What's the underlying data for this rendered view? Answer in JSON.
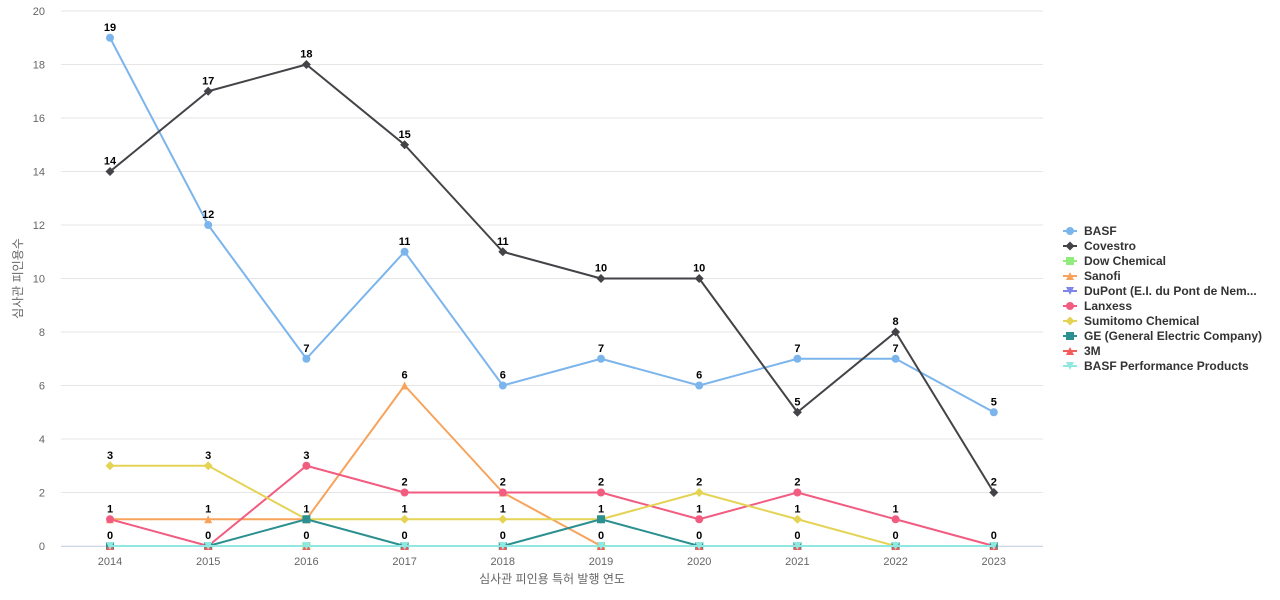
{
  "chart_data": {
    "type": "line",
    "title": "",
    "xlabel": "심사관 피인용 특허 발행 연도",
    "ylabel": "심사관 피인용수",
    "x": [
      "2014",
      "2015",
      "2016",
      "2017",
      "2018",
      "2019",
      "2020",
      "2021",
      "2022",
      "2023"
    ],
    "ylim": [
      0,
      20
    ],
    "yticks": [
      0,
      2,
      4,
      6,
      8,
      10,
      12,
      14,
      16,
      18,
      20
    ],
    "grid": true,
    "legend_position": "right",
    "series": [
      {
        "name": "BASF",
        "color": "#7cb5ec",
        "marker": "circle",
        "values": [
          19,
          12,
          7,
          11,
          6,
          7,
          6,
          7,
          7,
          5
        ]
      },
      {
        "name": "Covestro",
        "color": "#434348",
        "marker": "diamond",
        "values": [
          14,
          17,
          18,
          15,
          11,
          10,
          10,
          5,
          8,
          2
        ]
      },
      {
        "name": "Dow Chemical",
        "color": "#90ed7d",
        "marker": "square",
        "values": [
          0,
          0,
          0,
          0,
          0,
          0,
          0,
          0,
          0,
          0
        ]
      },
      {
        "name": "Sanofi",
        "color": "#f7a35c",
        "marker": "triangle",
        "values": [
          1,
          1,
          1,
          6,
          2,
          0,
          0,
          0,
          0,
          0
        ]
      },
      {
        "name": "DuPont (E.I. du Pont de Nem...",
        "color": "#8085e9",
        "marker": "triangle-down",
        "values": [
          0,
          0,
          0,
          0,
          0,
          0,
          0,
          0,
          0,
          0
        ]
      },
      {
        "name": "Lanxess",
        "color": "#f15c80",
        "marker": "circle",
        "values": [
          1,
          0,
          3,
          2,
          2,
          2,
          1,
          2,
          1,
          0
        ]
      },
      {
        "name": "Sumitomo Chemical",
        "color": "#e4d354",
        "marker": "diamond",
        "values": [
          3,
          3,
          1,
          1,
          1,
          1,
          2,
          1,
          0,
          0
        ]
      },
      {
        "name": "GE (General Electric Company)",
        "color": "#2b908f",
        "marker": "square",
        "values": [
          0,
          0,
          1,
          0,
          0,
          1,
          0,
          0,
          0,
          0
        ]
      },
      {
        "name": "3M",
        "color": "#f45b5b",
        "marker": "triangle",
        "values": [
          0,
          0,
          0,
          0,
          0,
          0,
          0,
          0,
          0,
          0
        ]
      },
      {
        "name": "BASF Performance Products",
        "color": "#91e8e1",
        "marker": "triangle-down",
        "values": [
          0,
          0,
          0,
          0,
          0,
          0,
          0,
          0,
          0,
          0
        ]
      }
    ],
    "data_labels": [
      {
        "x": "2014",
        "value": 19,
        "series": "BASF"
      },
      {
        "x": "2015",
        "value": 17,
        "series": "Covestro"
      },
      {
        "x": "2016",
        "value": 18,
        "series": "Covestro"
      },
      {
        "x": "2017",
        "value": 15,
        "series": "Covestro"
      },
      {
        "x": "2014",
        "value": 14,
        "series": "Covestro"
      },
      {
        "x": "2015",
        "value": 12,
        "series": "BASF"
      },
      {
        "x": "2017",
        "value": 11,
        "series": "BASF"
      },
      {
        "x": "2018",
        "value": 11,
        "series": "Covestro"
      },
      {
        "x": "2019",
        "value": 10,
        "series": "Covestro"
      },
      {
        "x": "2020",
        "value": 10,
        "series": "Covestro"
      },
      {
        "x": "2016",
        "value": 7,
        "series": "BASF"
      },
      {
        "x": "2019",
        "value": 7,
        "series": "BASF"
      },
      {
        "x": "2021",
        "value": 7,
        "series": "BASF"
      },
      {
        "x": "2022",
        "value": 7,
        "series": "BASF"
      },
      {
        "x": "2022",
        "value": 8,
        "series": "Covestro"
      },
      {
        "x": "2017",
        "value": 6,
        "series": "Sanofi"
      },
      {
        "x": "2018",
        "value": 6,
        "series": "BASF"
      },
      {
        "x": "2020",
        "value": 6,
        "series": "BASF"
      },
      {
        "x": "2021",
        "value": 5,
        "series": "Covestro"
      },
      {
        "x": "2023",
        "value": 5,
        "series": "BASF"
      },
      {
        "x": "2014",
        "value": 3,
        "series": "Sumitomo Chemical"
      },
      {
        "x": "2015",
        "value": 3,
        "series": "Sumitomo Chemical"
      },
      {
        "x": "2016",
        "value": 3,
        "series": "Lanxess"
      },
      {
        "x": "2017",
        "value": 2,
        "series": "Lanxess"
      },
      {
        "x": "2018",
        "value": 2,
        "series": "Lanxess"
      },
      {
        "x": "2019",
        "value": 2,
        "series": "Lanxess"
      },
      {
        "x": "2020",
        "value": 2,
        "series": "Sumitomo Chemical"
      },
      {
        "x": "2021",
        "value": 2,
        "series": "Lanxess"
      },
      {
        "x": "2023",
        "value": 2,
        "series": "Covestro"
      },
      {
        "x": "2014",
        "value": 1,
        "series": "Sanofi"
      },
      {
        "x": "2015",
        "value": 1,
        "series": "Sanofi"
      },
      {
        "x": "2016",
        "value": 1,
        "series": "GE (General Electric Company)"
      },
      {
        "x": "2017",
        "value": 1,
        "series": "Sumitomo Chemical"
      },
      {
        "x": "2018",
        "value": 1,
        "series": "Sumitomo Chemical"
      },
      {
        "x": "2019",
        "value": 1,
        "series": "GE (General Electric Company)"
      },
      {
        "x": "2020",
        "value": 1,
        "series": "Lanxess"
      },
      {
        "x": "2021",
        "value": 1,
        "series": "Sumitomo Chemical"
      },
      {
        "x": "2022",
        "value": 1,
        "series": "Lanxess"
      },
      {
        "x": "2014",
        "value": 0,
        "series": "Dow Chemical"
      },
      {
        "x": "2015",
        "value": 0,
        "series": "Dow Chemical"
      },
      {
        "x": "2016",
        "value": 0,
        "series": "Dow Chemical"
      },
      {
        "x": "2017",
        "value": 0,
        "series": "Dow Chemical"
      },
      {
        "x": "2018",
        "value": 0,
        "series": "Dow Chemical"
      },
      {
        "x": "2019",
        "value": 0,
        "series": "Sanofi"
      },
      {
        "x": "2020",
        "value": 0,
        "series": "Dow Chemical"
      },
      {
        "x": "2021",
        "value": 0,
        "series": "Dow Chemical"
      },
      {
        "x": "2022",
        "value": 0,
        "series": "Dow Chemical"
      },
      {
        "x": "2023",
        "value": 0,
        "series": "Dow Chemical"
      }
    ]
  }
}
